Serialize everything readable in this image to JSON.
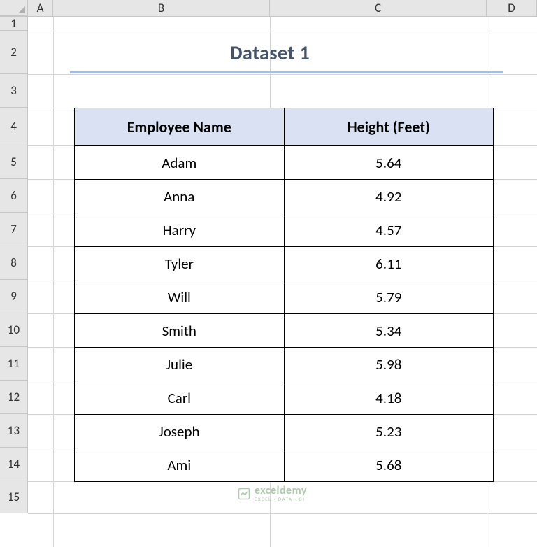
{
  "columns": {
    "A": "A",
    "B": "B",
    "C": "C",
    "D": "D"
  },
  "rows": {
    "r1": "1",
    "r2": "2",
    "r3": "3",
    "r4": "4",
    "r5": "5",
    "r6": "6",
    "r7": "7",
    "r8": "8",
    "r9": "9",
    "r10": "10",
    "r11": "11",
    "r12": "12",
    "r13": "13",
    "r14": "14",
    "r15": "15"
  },
  "title": {
    "text": "Dataset 1",
    "color": "#44546a",
    "underline_color": "#a6bdde",
    "fontsize": 28
  },
  "table": {
    "type": "table",
    "header_bg": "#d9e1f2",
    "header_color": "#000000",
    "cell_color": "#000000",
    "border_color": "#000000",
    "columns": [
      "Employee Name",
      "Height (Feet)"
    ],
    "rows": [
      [
        "Adam",
        "5.64"
      ],
      [
        "Anna",
        "4.92"
      ],
      [
        "Harry",
        "4.57"
      ],
      [
        "Tyler",
        "6.11"
      ],
      [
        "Will",
        "5.79"
      ],
      [
        "Smith",
        "5.34"
      ],
      [
        "Julie",
        "5.98"
      ],
      [
        "Carl",
        "4.18"
      ],
      [
        "Joseph",
        "5.23"
      ],
      [
        "Ami",
        "5.68"
      ]
    ]
  },
  "watermark": {
    "main": "exceldemy",
    "sub": "EXCEL · DATA · BI",
    "color": "#6aa06a",
    "icon_color": "#6aa06a"
  },
  "grid": {
    "gridline_color": "#d4d4d4",
    "header_bg": "#e6e6e6",
    "col_widths": {
      "A": 36,
      "B": 310,
      "C": 310,
      "D": 72
    },
    "row_heights": {
      "r1": 20,
      "r2": 62,
      "r3": 48,
      "r4": 54,
      "data": 48,
      "r15": 46
    }
  }
}
